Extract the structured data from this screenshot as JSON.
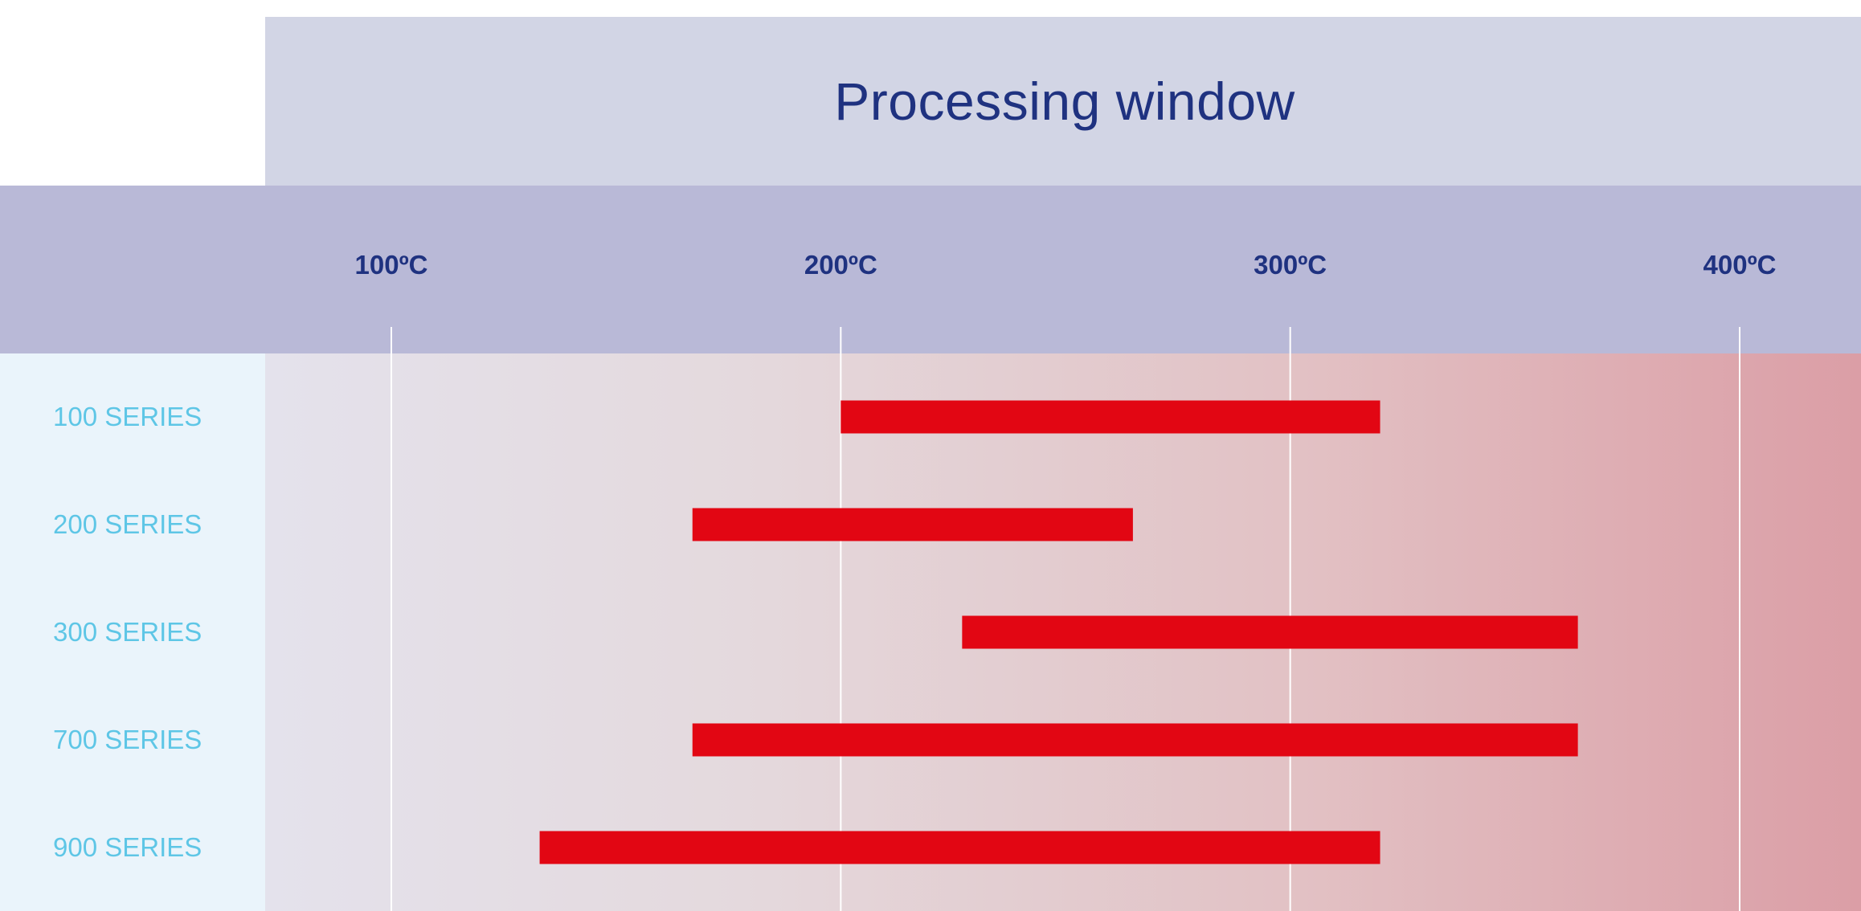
{
  "chart_data": {
    "type": "bar",
    "orientation": "horizontal",
    "title": "Processing window",
    "xlabel": "",
    "ylabel": "",
    "x_ticks": [
      100,
      200,
      300,
      400
    ],
    "x_tick_labels": [
      "100ºC",
      "200ºC",
      "300ºC",
      "400ºC"
    ],
    "xlim": [
      73,
      427
    ],
    "grid": true,
    "categories": [
      "100 SERIES",
      "200 SERIES",
      "300 SERIES",
      "700 SERIES",
      "900 SERIES"
    ],
    "ranges": [
      [
        200,
        320
      ],
      [
        167,
        265
      ],
      [
        227,
        364
      ],
      [
        167,
        364
      ],
      [
        133,
        320
      ]
    ],
    "colors": {
      "bar": "#e20613",
      "title": "#1f3280",
      "tick_label": "#1f3280",
      "category_label": "#5ec6e6",
      "gridline": "#ffffff"
    }
  }
}
